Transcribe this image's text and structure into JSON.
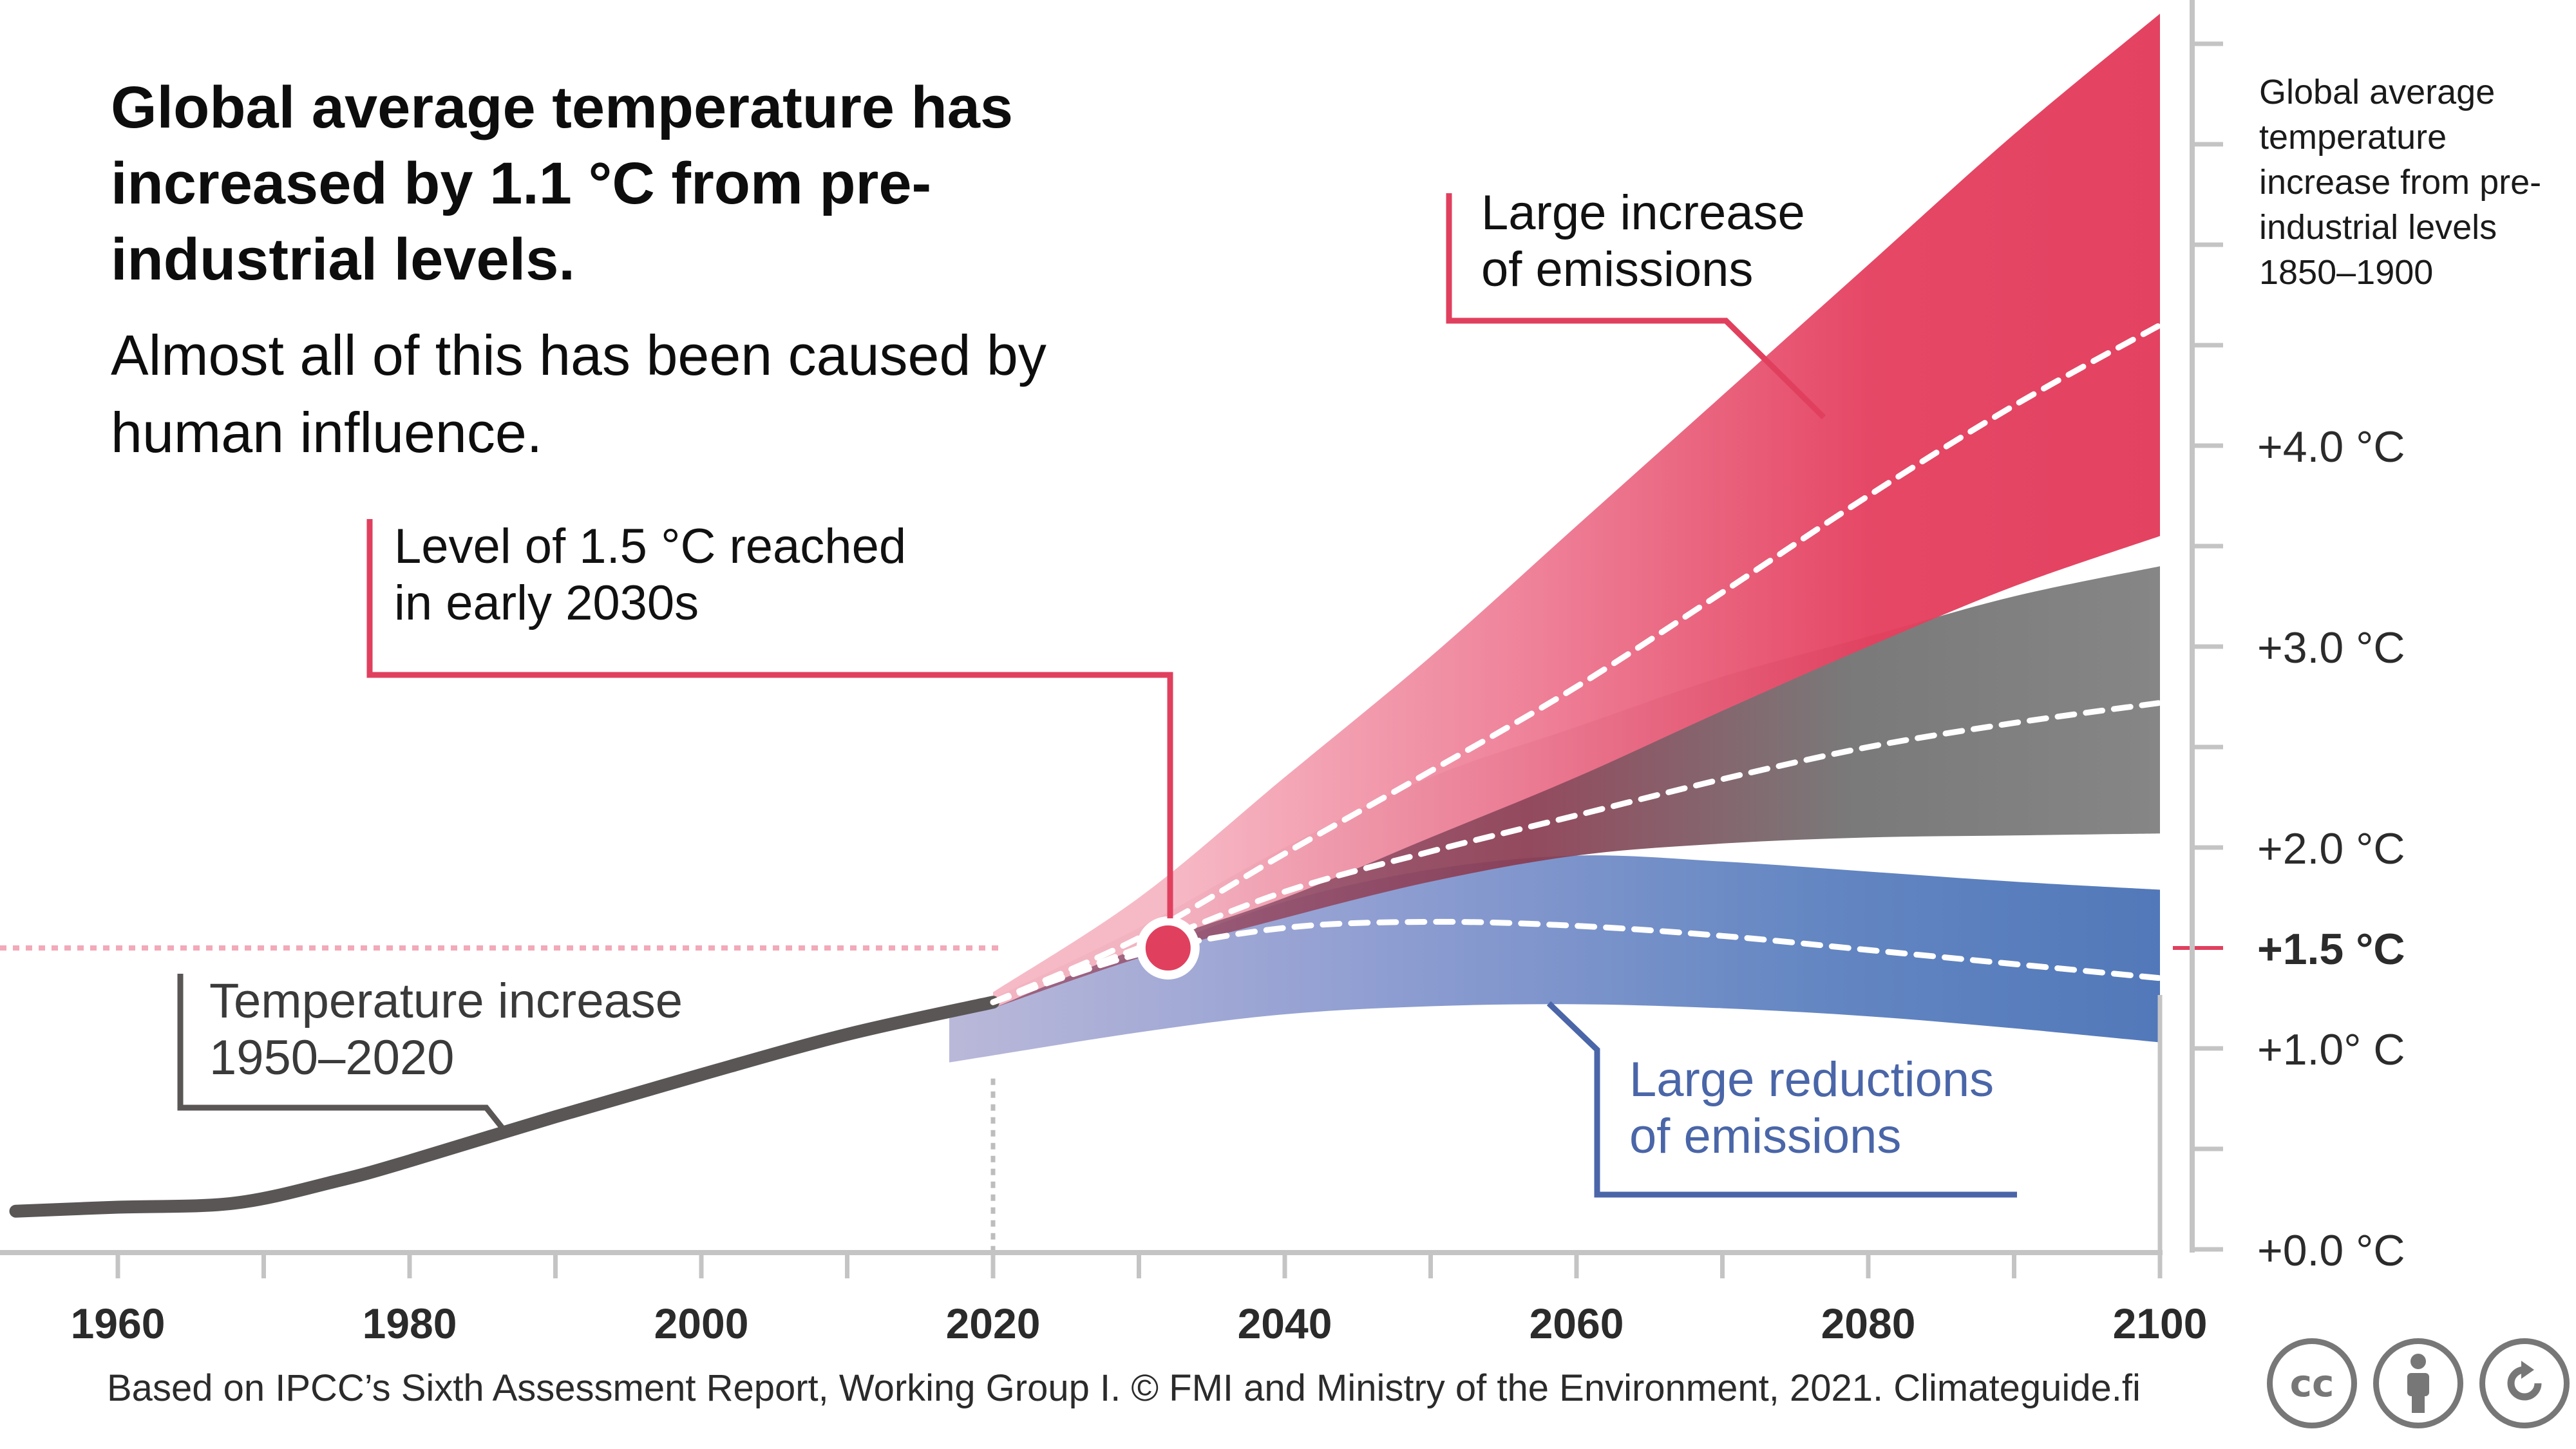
{
  "title": "Global average temperature has increased by 1.1 °C from pre-industrial levels.",
  "subtitle": "Almost all of this has been caused by human influence.",
  "side_label": "Global average temperature increase from pre-industrial levels 1850–1900",
  "source": "Based on IPCC’s Sixth Assessment Report, Working Group I. © FMI and Ministry of the Environment, 2021. Climateguide.fi",
  "license_icons": [
    "cc-icon",
    "by-attribution-icon",
    "share-alike-icon"
  ],
  "chart_data": {
    "type": "area",
    "x_ticks": [
      1960,
      1980,
      2000,
      2020,
      2040,
      2060,
      2080,
      2100
    ],
    "y_ticks": [
      {
        "value": 0.0,
        "label": "+0.0 °C"
      },
      {
        "value": 1.0,
        "label": "+1.0° C"
      },
      {
        "value": 1.5,
        "label": "+1.5 °C"
      },
      {
        "value": 2.0,
        "label": "+2.0 °C"
      },
      {
        "value": 3.0,
        "label": "+3.0 °C"
      },
      {
        "value": 4.0,
        "label": "+4.0 °C"
      }
    ],
    "xlim": [
      1953,
      2100
    ],
    "ylim": [
      0.0,
      6.0
    ],
    "historical": {
      "x": [
        1953,
        1960,
        1968,
        1975,
        1980,
        1990,
        2000,
        2010,
        2020
      ],
      "y": [
        0.19,
        0.21,
        0.23,
        0.34,
        0.44,
        0.66,
        0.87,
        1.07,
        1.23
      ]
    },
    "scenarios": [
      {
        "id": "low",
        "color": "#4a72b6",
        "x": [
          2017,
          2030,
          2040,
          2050,
          2060,
          2070,
          2080,
          2090,
          2100
        ],
        "lower": [
          0.93,
          1.08,
          1.17,
          1.21,
          1.22,
          1.2,
          1.16,
          1.1,
          1.03
        ],
        "upper": [
          1.15,
          1.47,
          1.73,
          1.89,
          1.96,
          1.93,
          1.88,
          1.83,
          1.79
        ],
        "median": {
          "x": [
            2020,
            2030,
            2040,
            2050,
            2060,
            2070,
            2080,
            2090,
            2100
          ],
          "y": [
            1.23,
            1.47,
            1.6,
            1.63,
            1.61,
            1.56,
            1.49,
            1.42,
            1.35
          ]
        }
      },
      {
        "id": "intermediate",
        "color": "#7a7a7a",
        "x": [
          2020,
          2030,
          2040,
          2050,
          2060,
          2070,
          2080,
          2090,
          2100
        ],
        "lower": [
          1.2,
          1.45,
          1.65,
          1.83,
          1.96,
          2.02,
          2.05,
          2.06,
          2.07
        ],
        "upper": [
          1.25,
          1.6,
          2.0,
          2.35,
          2.6,
          2.85,
          3.05,
          3.25,
          3.4
        ],
        "median": {
          "x": [
            2020,
            2030,
            2040,
            2050,
            2060,
            2070,
            2080,
            2090,
            2100
          ],
          "y": [
            1.23,
            1.5,
            1.78,
            1.98,
            2.16,
            2.34,
            2.5,
            2.62,
            2.72
          ]
        }
      },
      {
        "id": "high",
        "color": "#e4405f",
        "x": [
          2020,
          2030,
          2040,
          2050,
          2060,
          2070,
          2080,
          2090,
          2100
        ],
        "lower": [
          1.2,
          1.5,
          1.75,
          2.05,
          2.35,
          2.68,
          3.0,
          3.3,
          3.55
        ],
        "upper": [
          1.28,
          1.75,
          2.35,
          2.95,
          3.6,
          4.25,
          4.9,
          5.55,
          6.15
        ],
        "median": {
          "x": [
            2020,
            2030,
            2040,
            2050,
            2060,
            2070,
            2080,
            2090,
            2100
          ],
          "y": [
            1.23,
            1.55,
            1.97,
            2.38,
            2.8,
            3.27,
            3.75,
            4.2,
            4.6
          ]
        }
      }
    ],
    "threshold": {
      "value": 1.5,
      "color": "#e0405e"
    },
    "marker": {
      "x": 2032,
      "y": 1.5,
      "color": "#e0405e"
    },
    "annotations": {
      "level": {
        "lines": [
          "Level of 1.5 °C reached",
          "in early 2030s"
        ],
        "color": "#e0405e"
      },
      "high": {
        "lines": [
          "Large increase",
          "of emissions"
        ],
        "color": "#e0405e"
      },
      "low": {
        "lines": [
          "Large reductions",
          "of emissions"
        ],
        "color": "#4a66a8"
      },
      "historical": {
        "lines": [
          "Temperature increase",
          "1950–2020"
        ],
        "color": "#5a5656"
      }
    }
  }
}
